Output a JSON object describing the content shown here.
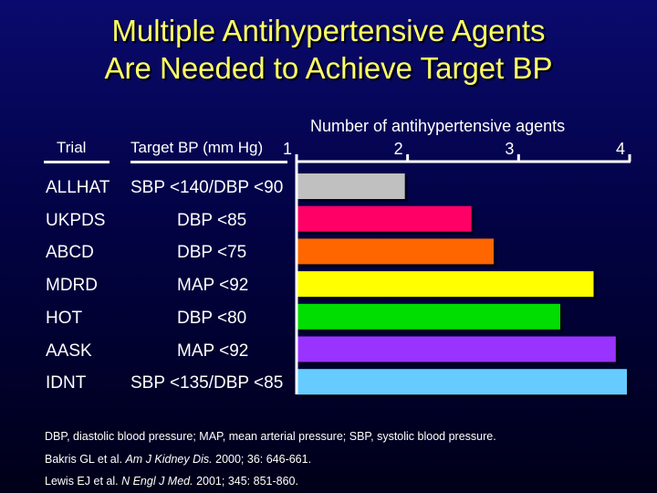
{
  "title_line1": "Multiple Antihypertensive Agents",
  "title_line2": "Are Needed to Achieve Target BP",
  "headers": {
    "trial": "Trial",
    "target": "Target BP (mm Hg)",
    "agents": "Number of antihypertensive agents"
  },
  "rows": [
    {
      "trial": "ALLHAT",
      "target": "SBP <140/DBP <90"
    },
    {
      "trial": "UKPDS",
      "target": "DBP <85"
    },
    {
      "trial": "ABCD",
      "target": "DBP <75"
    },
    {
      "trial": "MDRD",
      "target": "MAP <92"
    },
    {
      "trial": "HOT",
      "target": "DBP <80"
    },
    {
      "trial": "AASK",
      "target": "MAP <92"
    },
    {
      "trial": "IDNT",
      "target": "SBP <135/DBP <85"
    }
  ],
  "footnotes": {
    "abbrev": "DBP, diastolic blood pressure; MAP, mean arterial pressure; SBP, systolic blood pressure.",
    "ref1_authors": "Bakris GL et al. ",
    "ref1_journal": "Am J Kidney Dis.",
    "ref1_rest": " 2000; 36: 646-661.",
    "ref2_authors": "Lewis EJ et al. ",
    "ref2_journal": "N Engl J Med.",
    "ref2_rest": " 2001; 345: 851-860."
  },
  "chart_data": {
    "type": "bar",
    "orientation": "horizontal",
    "title": "Multiple Antihypertensive Agents Are Needed to Achieve Target BP",
    "xlabel": "Number of antihypertensive agents",
    "xlim": [
      1,
      4
    ],
    "xticks": [
      "1",
      "2",
      "3",
      "4"
    ],
    "categories": [
      "ALLHAT",
      "UKPDS",
      "ABCD",
      "MDRD",
      "HOT",
      "AASK",
      "IDNT"
    ],
    "values": [
      2.0,
      2.6,
      2.8,
      3.7,
      3.4,
      3.9,
      4.0
    ],
    "colors": [
      "#c0c0c0",
      "#ff0066",
      "#ff6600",
      "#ffff00",
      "#00dd00",
      "#9933ff",
      "#66ccff"
    ],
    "grid": false
  }
}
